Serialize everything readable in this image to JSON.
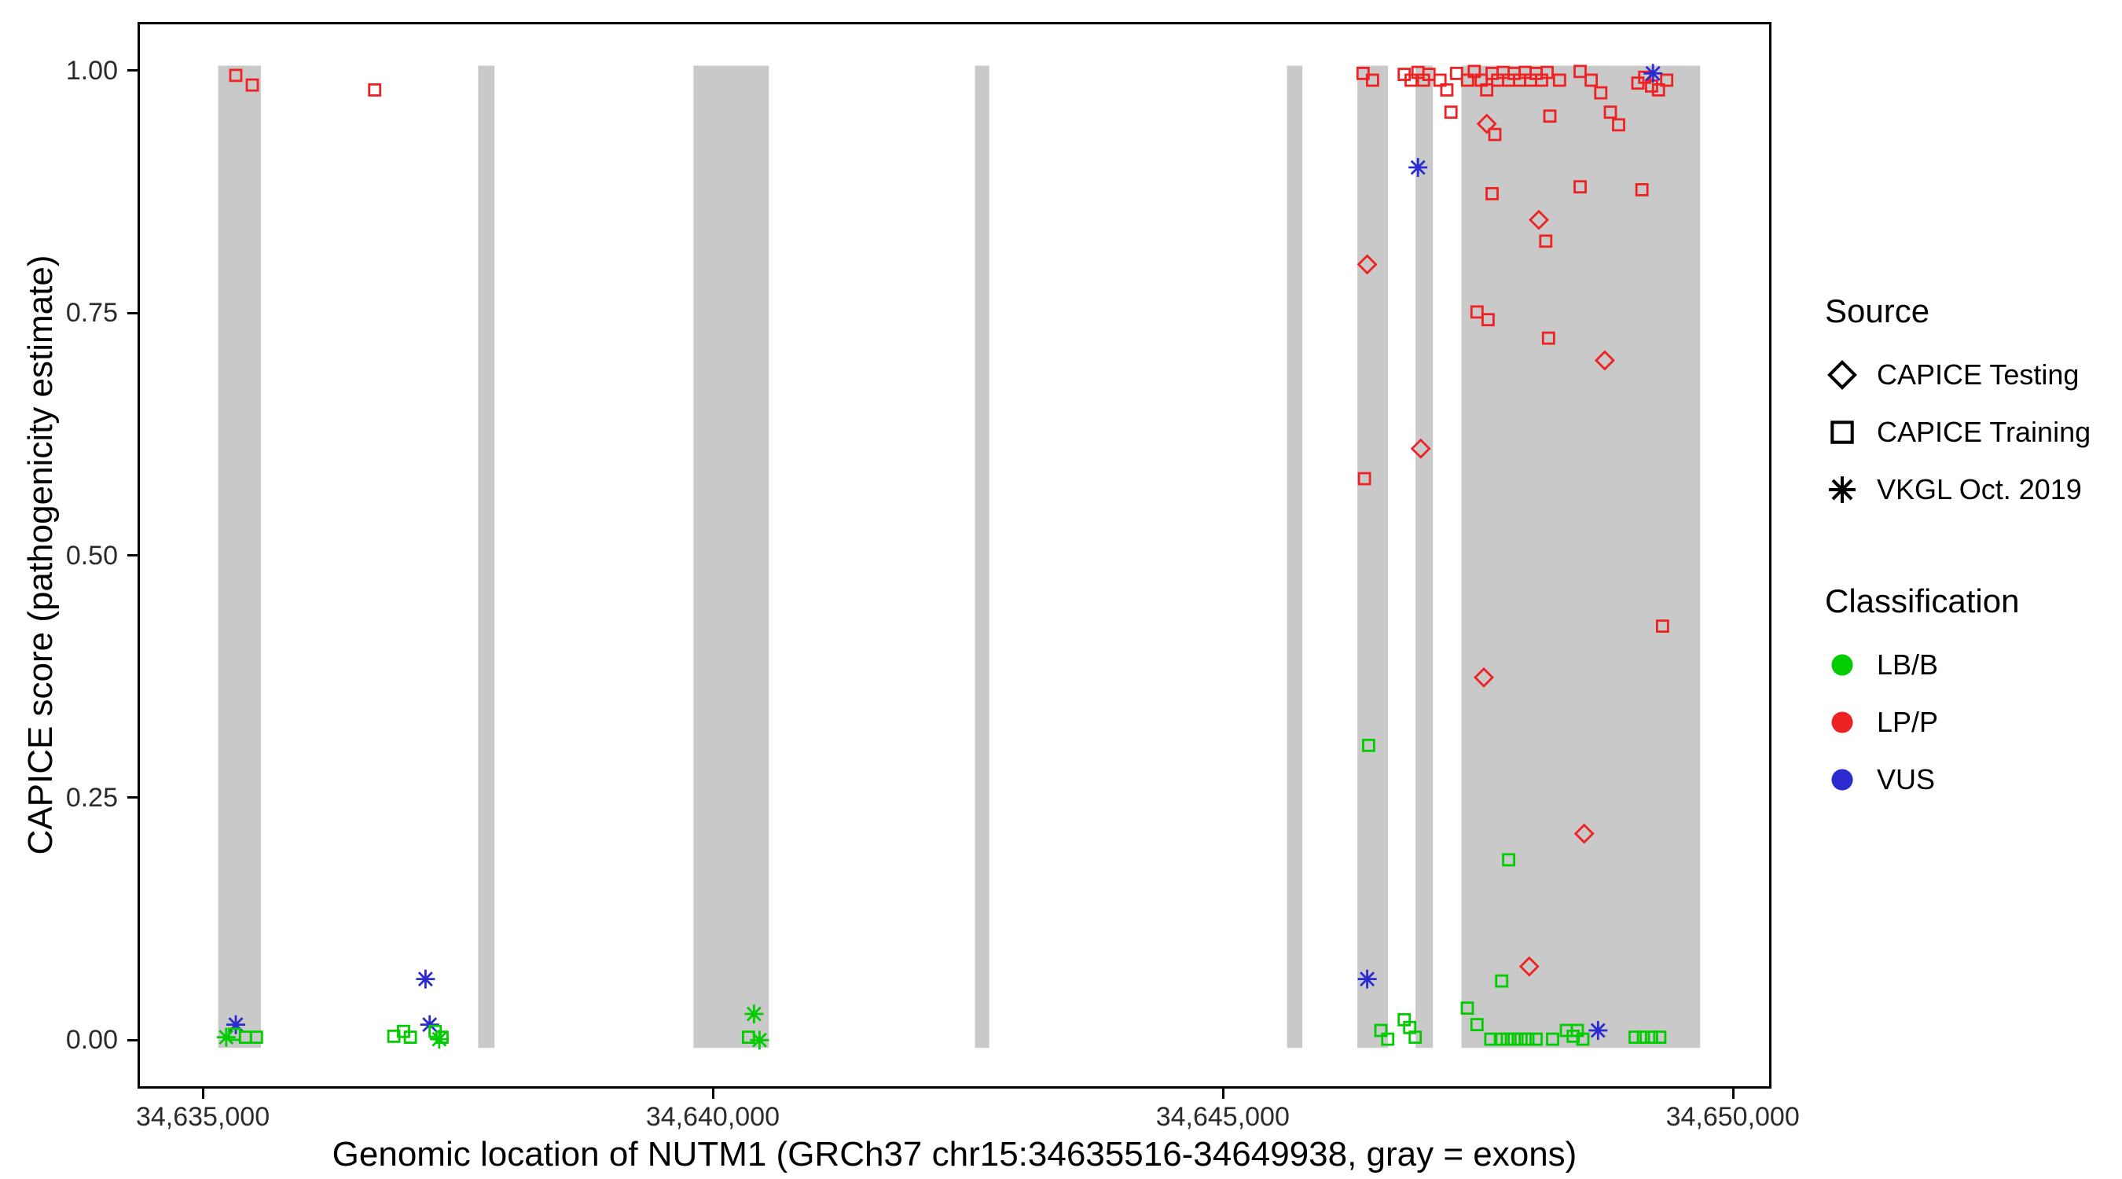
{
  "chart_data": {
    "type": "scatter",
    "title": "",
    "xlabel": "Genomic location of NUTM1 (GRCh37 chr15:34635516-34649938, gray = exons)",
    "ylabel": "CAPICE score (pathogenicity estimate)",
    "xlim": [
      34634360,
      34650380
    ],
    "ylim": [
      -0.05,
      1.05
    ],
    "grid": false,
    "panel_border_color": "#000000",
    "background_color": "#ffffff",
    "x_ticks": [
      {
        "value": 34635000,
        "label": "34,635,000"
      },
      {
        "value": 34640000,
        "label": "34,640,000"
      },
      {
        "value": 34645000,
        "label": "34,645,000"
      },
      {
        "value": 34650000,
        "label": "34,650,000"
      }
    ],
    "y_ticks": [
      {
        "value": 0.0,
        "label": "0.00"
      },
      {
        "value": 0.25,
        "label": "0.25"
      },
      {
        "value": 0.5,
        "label": "0.50"
      },
      {
        "value": 0.75,
        "label": "0.75"
      },
      {
        "value": 1.0,
        "label": "1.00"
      }
    ],
    "exon_color": "#c9c9c9",
    "exon_y_range": [
      -0.008,
      1.005
    ],
    "exons": [
      [
        34635150,
        34635570
      ],
      [
        34637700,
        34637860
      ],
      [
        34639810,
        34640550
      ],
      [
        34642570,
        34642710
      ],
      [
        34645630,
        34645780
      ],
      [
        34646320,
        34646620
      ],
      [
        34646890,
        34647060
      ],
      [
        34647340,
        34649680
      ]
    ],
    "source_legend": {
      "title": "Source",
      "items": [
        {
          "label": "CAPICE Testing",
          "shape": "diamond"
        },
        {
          "label": "CAPICE Training",
          "shape": "square"
        },
        {
          "label": "VKGL Oct. 2019",
          "shape": "asterisk"
        }
      ]
    },
    "class_legend": {
      "title": "Classification",
      "items": [
        {
          "label": "LB/B",
          "color": "#00cc00"
        },
        {
          "label": "LP/P",
          "color": "#ee2222"
        },
        {
          "label": "VUS",
          "color": "#2b2bd0"
        }
      ]
    },
    "shape_by_source": {
      "testing": "diamond",
      "training": "square",
      "vkgl": "asterisk"
    },
    "colors": {
      "LB/B": "#00cc00",
      "LP/P": "#ee2222",
      "VUS": "#2b2bd0"
    },
    "points_format": [
      "genomic_position",
      "capice_score",
      "source",
      "classification"
    ],
    "points": [
      [
        34635323,
        0.995,
        "training",
        "LP/P"
      ],
      [
        34635485,
        0.985,
        "training",
        "LP/P"
      ],
      [
        34636685,
        0.98,
        "training",
        "LP/P"
      ],
      [
        34635229,
        0.003,
        "vkgl",
        "LB/B"
      ],
      [
        34635323,
        0.016,
        "vkgl",
        "VUS"
      ],
      [
        34635310,
        0.006,
        "training",
        "LB/B"
      ],
      [
        34635418,
        0.003,
        "training",
        "LB/B"
      ],
      [
        34635526,
        0.003,
        "training",
        "LB/B"
      ],
      [
        34636873,
        0.004,
        "training",
        "LB/B"
      ],
      [
        34636968,
        0.009,
        "training",
        "LB/B"
      ],
      [
        34637035,
        0.003,
        "training",
        "LB/B"
      ],
      [
        34637183,
        0.063,
        "vkgl",
        "VUS"
      ],
      [
        34637224,
        0.016,
        "vkgl",
        "VUS"
      ],
      [
        34637278,
        0.009,
        "training",
        "LB/B"
      ],
      [
        34637345,
        0.003,
        "training",
        "LB/B"
      ],
      [
        34637318,
        0.001,
        "vkgl",
        "LB/B"
      ],
      [
        34640404,
        0.027,
        "vkgl",
        "LB/B"
      ],
      [
        34640350,
        0.003,
        "training",
        "LB/B"
      ],
      [
        34640458,
        0.0,
        "vkgl",
        "LB/B"
      ],
      [
        34646375,
        0.997,
        "training",
        "LP/P"
      ],
      [
        34646469,
        0.99,
        "training",
        "LP/P"
      ],
      [
        34646779,
        0.996,
        "training",
        "LP/P"
      ],
      [
        34646847,
        0.99,
        "training",
        "LP/P"
      ],
      [
        34646914,
        0.998,
        "training",
        "LP/P"
      ],
      [
        34646968,
        0.99,
        "training",
        "LP/P"
      ],
      [
        34647022,
        0.996,
        "training",
        "LP/P"
      ],
      [
        34647130,
        0.99,
        "training",
        "LP/P"
      ],
      [
        34647197,
        0.98,
        "training",
        "LP/P"
      ],
      [
        34647238,
        0.957,
        "training",
        "LP/P"
      ],
      [
        34647292,
        0.997,
        "training",
        "LP/P"
      ],
      [
        34647400,
        0.99,
        "training",
        "LP/P"
      ],
      [
        34647466,
        0.999,
        "training",
        "LP/P"
      ],
      [
        34647534,
        0.99,
        "training",
        "LP/P"
      ],
      [
        34647588,
        0.98,
        "training",
        "LP/P"
      ],
      [
        34647641,
        0.997,
        "training",
        "LP/P"
      ],
      [
        34647695,
        0.99,
        "training",
        "LP/P"
      ],
      [
        34647749,
        0.998,
        "training",
        "LP/P"
      ],
      [
        34647803,
        0.99,
        "training",
        "LP/P"
      ],
      [
        34647857,
        0.997,
        "training",
        "LP/P"
      ],
      [
        34647911,
        0.99,
        "training",
        "LP/P"
      ],
      [
        34647965,
        0.998,
        "training",
        "LP/P"
      ],
      [
        34648019,
        0.99,
        "training",
        "LP/P"
      ],
      [
        34648072,
        0.997,
        "training",
        "LP/P"
      ],
      [
        34648126,
        0.99,
        "training",
        "LP/P"
      ],
      [
        34648180,
        0.998,
        "training",
        "LP/P"
      ],
      [
        34648302,
        0.99,
        "training",
        "LP/P"
      ],
      [
        34648504,
        0.999,
        "training",
        "LP/P"
      ],
      [
        34648612,
        0.99,
        "training",
        "LP/P"
      ],
      [
        34648706,
        0.977,
        "training",
        "LP/P"
      ],
      [
        34648800,
        0.957,
        "training",
        "LP/P"
      ],
      [
        34648881,
        0.944,
        "training",
        "LP/P"
      ],
      [
        34649070,
        0.987,
        "training",
        "LP/P"
      ],
      [
        34649137,
        0.993,
        "training",
        "LP/P"
      ],
      [
        34649204,
        0.984,
        "training",
        "LP/P"
      ],
      [
        34649272,
        0.98,
        "training",
        "LP/P"
      ],
      [
        34649353,
        0.99,
        "training",
        "LP/P"
      ],
      [
        34649218,
        0.997,
        "vkgl",
        "VUS"
      ],
      [
        34647588,
        0.945,
        "testing",
        "LP/P"
      ],
      [
        34647668,
        0.934,
        "training",
        "LP/P"
      ],
      [
        34648207,
        0.953,
        "training",
        "LP/P"
      ],
      [
        34647641,
        0.873,
        "training",
        "LP/P"
      ],
      [
        34648099,
        0.846,
        "testing",
        "LP/P"
      ],
      [
        34648167,
        0.824,
        "training",
        "LP/P"
      ],
      [
        34648504,
        0.88,
        "training",
        "LP/P"
      ],
      [
        34649110,
        0.877,
        "training",
        "LP/P"
      ],
      [
        34647493,
        0.751,
        "training",
        "LP/P"
      ],
      [
        34647601,
        0.743,
        "training",
        "LP/P"
      ],
      [
        34648194,
        0.724,
        "training",
        "LP/P"
      ],
      [
        34648746,
        0.701,
        "testing",
        "LP/P"
      ],
      [
        34646416,
        0.8,
        "testing",
        "LP/P"
      ],
      [
        34646389,
        0.579,
        "training",
        "LP/P"
      ],
      [
        34646941,
        0.61,
        "testing",
        "LP/P"
      ],
      [
        34646914,
        0.9,
        "vkgl",
        "VUS"
      ],
      [
        34647560,
        0.374,
        "testing",
        "LP/P"
      ],
      [
        34649312,
        0.427,
        "training",
        "LP/P"
      ],
      [
        34648544,
        0.213,
        "testing",
        "LP/P"
      ],
      [
        34648005,
        0.076,
        "testing",
        "LP/P"
      ],
      [
        34646430,
        0.304,
        "training",
        "LB/B"
      ],
      [
        34646416,
        0.063,
        "vkgl",
        "VUS"
      ],
      [
        34647803,
        0.186,
        "training",
        "LB/B"
      ],
      [
        34647735,
        0.061,
        "training",
        "LB/B"
      ],
      [
        34647398,
        0.033,
        "training",
        "LB/B"
      ],
      [
        34647493,
        0.016,
        "training",
        "LB/B"
      ],
      [
        34646550,
        0.01,
        "training",
        "LB/B"
      ],
      [
        34646617,
        0.001,
        "training",
        "LB/B"
      ],
      [
        34646779,
        0.021,
        "training",
        "LB/B"
      ],
      [
        34646833,
        0.013,
        "training",
        "LB/B"
      ],
      [
        34646887,
        0.003,
        "training",
        "LB/B"
      ],
      [
        34647628,
        0.001,
        "training",
        "LB/B"
      ],
      [
        34647722,
        0.001,
        "training",
        "LB/B"
      ],
      [
        34647790,
        0.001,
        "training",
        "LB/B"
      ],
      [
        34647857,
        0.001,
        "training",
        "LB/B"
      ],
      [
        34647924,
        0.001,
        "training",
        "LB/B"
      ],
      [
        34647992,
        0.001,
        "training",
        "LB/B"
      ],
      [
        34648072,
        0.001,
        "training",
        "LB/B"
      ],
      [
        34648234,
        0.001,
        "training",
        "LB/B"
      ],
      [
        34648369,
        0.01,
        "training",
        "LB/B"
      ],
      [
        34648436,
        0.004,
        "training",
        "LB/B"
      ],
      [
        34648477,
        0.01,
        "training",
        "LB/B"
      ],
      [
        34648531,
        0.001,
        "training",
        "LB/B"
      ],
      [
        34648679,
        0.01,
        "vkgl",
        "VUS"
      ],
      [
        34649043,
        0.003,
        "training",
        "LB/B"
      ],
      [
        34649124,
        0.003,
        "training",
        "LB/B"
      ],
      [
        34649204,
        0.003,
        "training",
        "LB/B"
      ],
      [
        34649285,
        0.003,
        "training",
        "LB/B"
      ]
    ]
  }
}
